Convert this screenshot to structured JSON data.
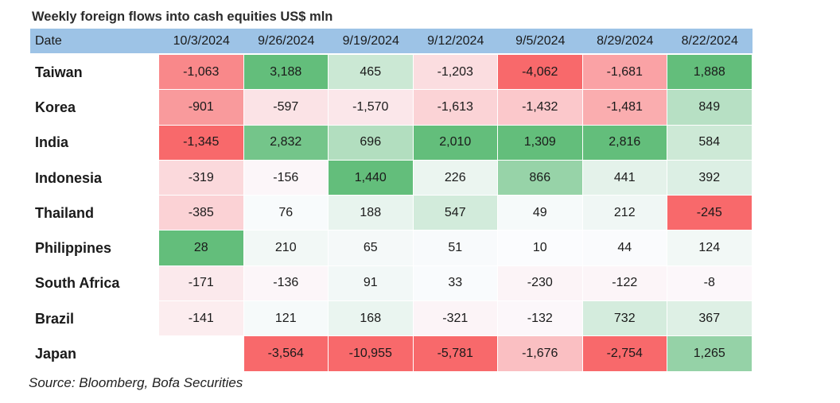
{
  "chart_data": {
    "type": "table",
    "title": "Weekly foreign flows into cash equities US$ mln",
    "header_label": "Date",
    "columns": [
      "10/3/2024",
      "9/26/2024",
      "9/19/2024",
      "9/12/2024",
      "9/5/2024",
      "8/29/2024",
      "8/22/2024"
    ],
    "rows": [
      {
        "name": "Taiwan",
        "values": [
          "-1,063",
          "3,188",
          "465",
          "-1,203",
          "-4,062",
          "-1,681",
          "1,888"
        ]
      },
      {
        "name": "Korea",
        "values": [
          "-901",
          "-597",
          "-1,570",
          "-1,613",
          "-1,432",
          "-1,481",
          "849"
        ]
      },
      {
        "name": "India",
        "values": [
          "-1,345",
          "2,832",
          "696",
          "2,010",
          "1,309",
          "2,816",
          "584"
        ]
      },
      {
        "name": "Indonesia",
        "values": [
          "-319",
          "-156",
          "1,440",
          "226",
          "866",
          "441",
          "392"
        ]
      },
      {
        "name": "Thailand",
        "values": [
          "-385",
          "76",
          "188",
          "547",
          "49",
          "212",
          "-245"
        ]
      },
      {
        "name": "Philippines",
        "values": [
          "28",
          "210",
          "65",
          "51",
          "10",
          "44",
          "124"
        ]
      },
      {
        "name": "South Africa",
        "values": [
          "-171",
          "-136",
          "91",
          "33",
          "-230",
          "-122",
          "-8"
        ]
      },
      {
        "name": "Brazil",
        "values": [
          "-141",
          "121",
          "168",
          "-321",
          "-132",
          "732",
          "367"
        ]
      },
      {
        "name": "Japan",
        "values": [
          "",
          "-3,564",
          "-10,955",
          "-5,781",
          "-1,676",
          "-2,754",
          "1,265"
        ]
      }
    ]
  },
  "colors": {
    "header_bg": "#9dc3e6",
    "pos_strong": "#63be7b",
    "neg_strong": "#f8696b",
    "neutral": "#fcfcff"
  },
  "source": "Source: Bloomberg, Bofa Securities"
}
